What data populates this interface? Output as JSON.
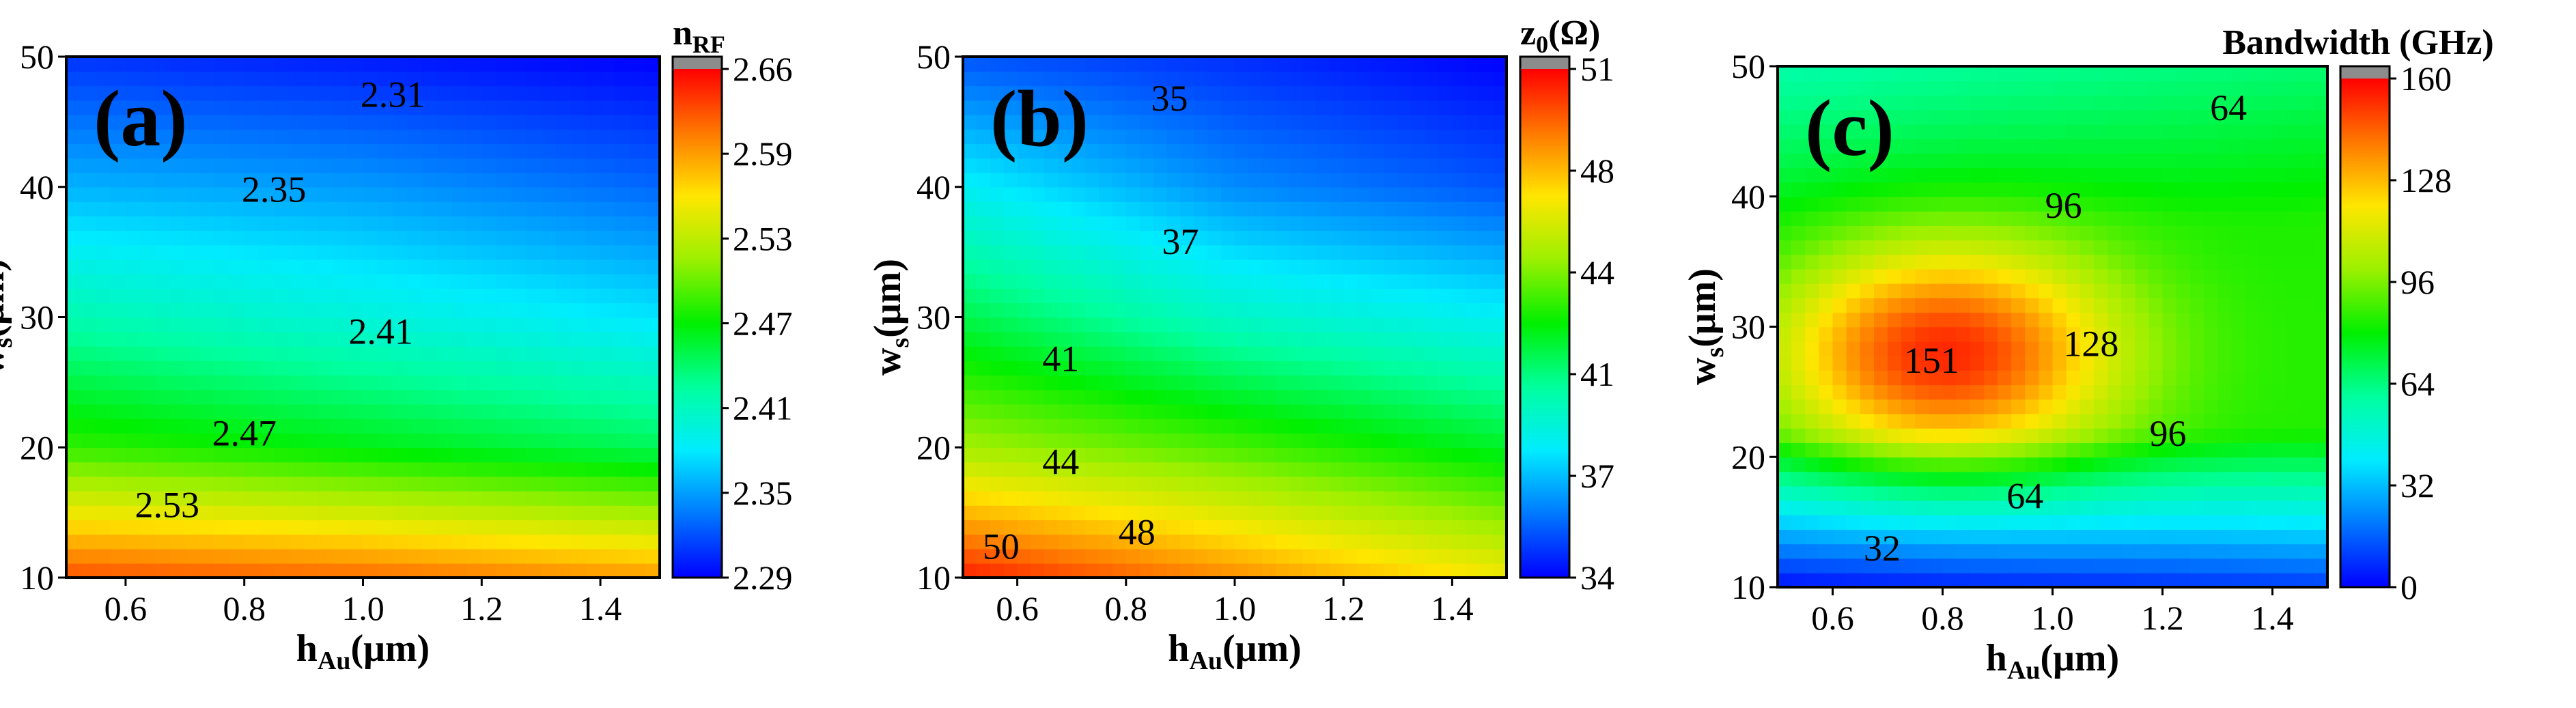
{
  "chart_data": [
    {
      "type": "heatmap",
      "panel_label": "(a)",
      "quantity": "refractive index n_RF",
      "xlabel": {
        "main": "h",
        "sub": "Au",
        "unit": "(μm)"
      },
      "ylabel": {
        "main": "w",
        "sub": "s",
        "unit": "(μm)"
      },
      "xlim": [
        0.5,
        1.5
      ],
      "ylim": [
        10,
        50
      ],
      "x_ticks": [
        "0.6",
        "0.8",
        "1.0",
        "1.2",
        "1.4"
      ],
      "y_ticks": [
        "10",
        "20",
        "30",
        "40",
        "50"
      ],
      "colorbar": {
        "title_main": "n",
        "title_sub": "RF",
        "title_unit": "",
        "range": [
          2.29,
          2.66
        ],
        "ticks": [
          "2.29",
          "2.35",
          "2.41",
          "2.47",
          "2.53",
          "2.59",
          "2.66"
        ]
      },
      "grid_x": [
        0.5,
        1.0,
        1.5
      ],
      "grid_y": [
        10,
        20,
        30,
        40,
        50
      ],
      "grid_z": [
        [
          2.63,
          2.62,
          2.6
        ],
        [
          2.49,
          2.47,
          2.45
        ],
        [
          2.42,
          2.4,
          2.38
        ],
        [
          2.36,
          2.35,
          2.33
        ],
        [
          2.31,
          2.3,
          2.29
        ]
      ],
      "contour_labels": [
        {
          "text": "2.31",
          "x": 1.05,
          "y": 46.8
        },
        {
          "text": "2.35",
          "x": 0.85,
          "y": 39.5
        },
        {
          "text": "2.41",
          "x": 1.03,
          "y": 28.6
        },
        {
          "text": "2.47",
          "x": 0.8,
          "y": 20.8
        },
        {
          "text": "2.53",
          "x": 0.67,
          "y": 15.3
        }
      ]
    },
    {
      "type": "heatmap",
      "panel_label": "(b)",
      "quantity": "characteristic impedance z0",
      "xlabel": {
        "main": "h",
        "sub": "Au",
        "unit": "(μm)"
      },
      "ylabel": {
        "main": "w",
        "sub": "s",
        "unit": "(μm)"
      },
      "xlim": [
        0.5,
        1.5
      ],
      "ylim": [
        10,
        50
      ],
      "x_ticks": [
        "0.6",
        "0.8",
        "1.0",
        "1.2",
        "1.4"
      ],
      "y_ticks": [
        "10",
        "20",
        "30",
        "40",
        "50"
      ],
      "colorbar": {
        "title_main": "z",
        "title_sub": "0",
        "title_unit": "(Ω)",
        "range": [
          34,
          51
        ],
        "ticks": [
          "34",
          "37",
          "41",
          "44",
          "48",
          "51"
        ]
      },
      "grid_x": [
        0.5,
        1.0,
        1.5
      ],
      "grid_y": [
        10,
        20,
        30,
        40,
        50
      ],
      "grid_z": [
        [
          50.5,
          48.5,
          46.5
        ],
        [
          44.8,
          43.5,
          42.0
        ],
        [
          41.5,
          39.5,
          38.5
        ],
        [
          38.5,
          36.5,
          35.5
        ],
        [
          35.5,
          34.8,
          34.0
        ]
      ],
      "contour_labels": [
        {
          "text": "35",
          "x": 0.88,
          "y": 46.5
        },
        {
          "text": "37",
          "x": 0.9,
          "y": 35.5
        },
        {
          "text": "41",
          "x": 0.68,
          "y": 26.5
        },
        {
          "text": "44",
          "x": 0.68,
          "y": 18.6
        },
        {
          "text": "48",
          "x": 0.82,
          "y": 13.2
        },
        {
          "text": "50",
          "x": 0.57,
          "y": 12.1
        }
      ]
    },
    {
      "type": "heatmap",
      "panel_label": "(c)",
      "quantity": "bandwidth",
      "xlabel": {
        "main": "h",
        "sub": "Au",
        "unit": "(μm)"
      },
      "ylabel": {
        "main": "w",
        "sub": "s",
        "unit": "(μm)"
      },
      "xlim": [
        0.5,
        1.5
      ],
      "ylim": [
        10,
        50
      ],
      "x_ticks": [
        "0.6",
        "0.8",
        "1.0",
        "1.2",
        "1.4"
      ],
      "y_ticks": [
        "10",
        "20",
        "30",
        "40",
        "50"
      ],
      "colorbar": {
        "title_main": "Bandwidth (GHz)",
        "title_sub": "",
        "title_unit": "",
        "range": [
          0,
          160
        ],
        "ticks": [
          "0",
          "32",
          "64",
          "96",
          "128",
          "160"
        ]
      },
      "peak": {
        "x": 0.8,
        "y": 28,
        "value": 155
      },
      "contour_labels": [
        {
          "text": "64",
          "x": 1.32,
          "y": 46.5
        },
        {
          "text": "96",
          "x": 1.02,
          "y": 39.0
        },
        {
          "text": "128",
          "x": 1.07,
          "y": 28.4
        },
        {
          "text": "151",
          "x": 0.78,
          "y": 27.1
        },
        {
          "text": "96",
          "x": 1.21,
          "y": 21.5
        },
        {
          "text": "64",
          "x": 0.95,
          "y": 16.7
        },
        {
          "text": "32",
          "x": 0.69,
          "y": 12.7
        }
      ]
    }
  ]
}
